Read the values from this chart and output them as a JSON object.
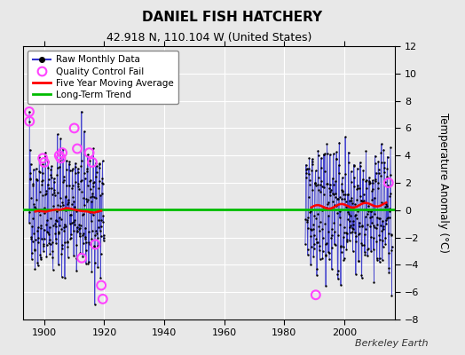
{
  "title": "DANIEL FISH HATCHERY",
  "subtitle": "42.918 N, 110.104 W (United States)",
  "ylabel": "Temperature Anomaly (°C)",
  "attribution": "Berkeley Earth",
  "xlim": [
    1893,
    2017
  ],
  "ylim": [
    -8,
    12
  ],
  "yticks": [
    -8,
    -6,
    -4,
    -2,
    0,
    2,
    4,
    6,
    8,
    10,
    12
  ],
  "xticks": [
    1900,
    1920,
    1940,
    1960,
    1980,
    2000
  ],
  "background_color": "#e8e8e8",
  "plot_bg_color": "#e8e8e8",
  "raw_line_color": "#3333cc",
  "raw_dot_color": "#000000",
  "qc_fail_color": "#ff44ff",
  "moving_avg_color": "#ff0000",
  "trend_color": "#00bb00",
  "legend_labels": [
    "Raw Monthly Data",
    "Quality Control Fail",
    "Five Year Moving Average",
    "Long-Term Trend"
  ]
}
